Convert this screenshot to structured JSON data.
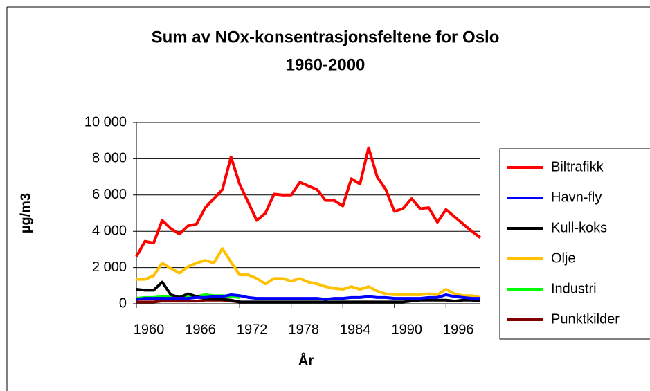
{
  "chart_data": {
    "type": "line",
    "title": [
      "Sum av NOx-konsentrasjonsfeltene for Oslo",
      "1960-2000"
    ],
    "x_label": "År",
    "y_label": "µg/m3",
    "x": [
      1960,
      1961,
      1962,
      1963,
      1964,
      1965,
      1966,
      1967,
      1968,
      1969,
      1970,
      1971,
      1972,
      1973,
      1974,
      1975,
      1976,
      1977,
      1978,
      1979,
      1980,
      1981,
      1982,
      1983,
      1984,
      1985,
      1986,
      1987,
      1988,
      1989,
      1990,
      1991,
      1992,
      1993,
      1994,
      1995,
      1996,
      1997,
      1998,
      1999,
      2000
    ],
    "xlim": [
      1960,
      2000
    ],
    "xticks": [
      1960,
      1966,
      1972,
      1978,
      1984,
      1990,
      1996
    ],
    "ylim": [
      0,
      10000
    ],
    "yticks": [
      0,
      {
        "value": 2000,
        "label": "2 000"
      },
      {
        "value": 4000,
        "label": "4 000"
      },
      {
        "value": 6000,
        "label": "6 000"
      },
      {
        "value": 8000,
        "label": "8 000"
      },
      {
        "value": 10000,
        "label": "10 000"
      }
    ],
    "grid": true,
    "legend": "right",
    "series": [
      {
        "name": "Biltrafikk",
        "color": "#ff0000",
        "values": [
          2600,
          3450,
          3350,
          4600,
          4150,
          3850,
          4300,
          4400,
          5300,
          5800,
          6300,
          8100,
          6600,
          5600,
          4600,
          5000,
          6050,
          6000,
          6000,
          6700,
          6500,
          6300,
          5700,
          5700,
          5400,
          6900,
          6600,
          8600,
          7000,
          6300,
          5100,
          5250,
          5800,
          5250,
          5300,
          4500,
          5200,
          4800,
          4400,
          4000,
          3650
        ]
      },
      {
        "name": "Havn-fly",
        "color": "#0000ff",
        "values": [
          250,
          300,
          300,
          300,
          300,
          300,
          300,
          350,
          350,
          400,
          400,
          500,
          450,
          350,
          300,
          300,
          300,
          300,
          300,
          300,
          300,
          300,
          250,
          300,
          300,
          350,
          350,
          400,
          350,
          350,
          300,
          300,
          300,
          300,
          350,
          350,
          500,
          400,
          350,
          300,
          300
        ]
      },
      {
        "name": "Kull-koks",
        "color": "#000000",
        "values": [
          800,
          750,
          750,
          1200,
          500,
          350,
          550,
          400,
          300,
          250,
          250,
          200,
          100,
          100,
          100,
          100,
          100,
          100,
          100,
          100,
          100,
          100,
          100,
          100,
          100,
          100,
          100,
          100,
          100,
          100,
          100,
          100,
          150,
          200,
          200,
          200,
          200,
          150,
          200,
          200,
          150
        ]
      },
      {
        "name": "Olje",
        "color": "#ffc000",
        "values": [
          1350,
          1350,
          1550,
          2250,
          1950,
          1700,
          2050,
          2250,
          2400,
          2250,
          3050,
          2300,
          1600,
          1600,
          1400,
          1100,
          1400,
          1400,
          1250,
          1400,
          1200,
          1100,
          950,
          850,
          800,
          950,
          800,
          950,
          700,
          550,
          500,
          500,
          500,
          500,
          550,
          500,
          800,
          550,
          450,
          450,
          350
        ]
      },
      {
        "name": "Industri",
        "color": "#00ff00",
        "values": [
          300,
          350,
          350,
          400,
          400,
          400,
          400,
          400,
          500,
          450,
          450,
          400,
          350,
          null,
          null,
          null,
          null,
          null,
          null,
          null,
          null,
          null,
          null,
          null,
          null,
          null,
          null,
          null,
          null,
          null,
          null,
          null,
          null,
          null,
          null,
          null,
          null,
          null,
          null,
          null,
          null
        ]
      },
      {
        "name": "Punktkilder",
        "color": "#800000",
        "values": [
          100,
          100,
          100,
          150,
          150,
          150,
          150,
          150,
          200,
          200,
          200,
          150,
          100,
          null,
          null,
          null,
          null,
          null,
          null,
          null,
          null,
          null,
          null,
          null,
          null,
          null,
          null,
          null,
          null,
          null,
          null,
          null,
          null,
          null,
          null,
          null,
          null,
          null,
          null,
          null,
          null
        ]
      }
    ]
  }
}
